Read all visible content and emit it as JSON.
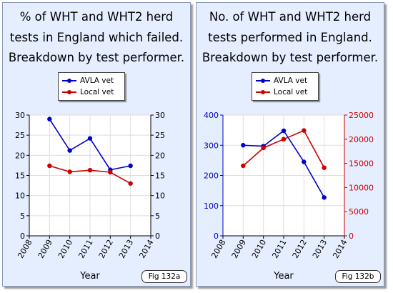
{
  "panels": {
    "a": {
      "title_lines": [
        "% of WHT and WHT2 herd",
        "tests in England which failed.",
        "Breakdown by test performer."
      ],
      "fig_label": "Fig 132a"
    },
    "b": {
      "title_lines": [
        "No. of WHT and WHT2 herd",
        "tests performed in England.",
        "Breakdown by test performer."
      ],
      "fig_label": "Fig 132b"
    }
  },
  "colors": {
    "avla": "#0000cc",
    "local": "#cc0000",
    "panel_bg": "#e4eeff"
  },
  "chart_data": [
    {
      "type": "line",
      "title": "% of WHT and WHT2 herd tests in England which failed. Breakdown by test performer.",
      "xlabel": "Year",
      "x_ticks": [
        "2008",
        "2009",
        "2010",
        "2011",
        "2012",
        "2013",
        "2014"
      ],
      "xlim": [
        2008,
        2014
      ],
      "ylim": [
        0,
        30
      ],
      "y_ticks": [
        0,
        5,
        10,
        15,
        20,
        25,
        30
      ],
      "y_right_ticks": [
        0,
        5,
        10,
        15,
        20,
        25,
        30
      ],
      "grid": true,
      "legend": "top-center",
      "x": [
        2009,
        2010,
        2011,
        2012,
        2013
      ],
      "series": [
        {
          "name": "AVLA vet",
          "values": [
            29.0,
            21.2,
            24.2,
            16.4,
            17.4
          ],
          "color": "#0000cc",
          "axis": "left"
        },
        {
          "name": "Local vet",
          "values": [
            17.4,
            15.9,
            16.3,
            15.8,
            13.0
          ],
          "color": "#cc0000",
          "axis": "left"
        }
      ]
    },
    {
      "type": "line",
      "title": "No. of WHT and WHT2 herd tests performed in England. Breakdown by test performer.",
      "xlabel": "Year",
      "x_ticks": [
        "2008",
        "2009",
        "2010",
        "2011",
        "2012",
        "2013",
        "2014"
      ],
      "xlim": [
        2008,
        2014
      ],
      "ylim": [
        0,
        400
      ],
      "y_ticks": [
        0,
        100,
        200,
        300,
        400
      ],
      "y_right_lim": [
        0,
        25000
      ],
      "y_right_ticks": [
        0,
        5000,
        10000,
        15000,
        20000,
        25000
      ],
      "grid": true,
      "legend": "top-center",
      "x": [
        2009,
        2010,
        2011,
        2012,
        2013
      ],
      "series": [
        {
          "name": "AVLA vet",
          "values": [
            300,
            297,
            348,
            245,
            127
          ],
          "color": "#0000cc",
          "axis": "left"
        },
        {
          "name": "Local vet",
          "values": [
            14500,
            18200,
            20000,
            21800,
            14100
          ],
          "color": "#cc0000",
          "axis": "right"
        }
      ]
    }
  ]
}
